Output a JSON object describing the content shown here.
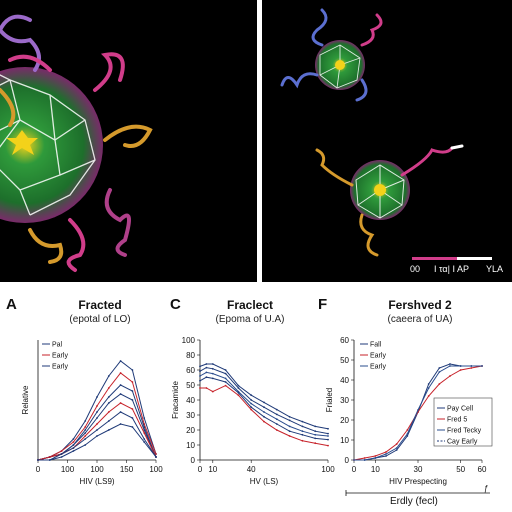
{
  "scale_bar": {
    "left_text": "00",
    "middle_text": "I τα| I AP",
    "right_text": "YLA"
  },
  "chart_data": [
    {
      "type": "line",
      "panel_letter": "A",
      "title": "Fracted",
      "subtitle": "(epotal of LO)",
      "xlabel": "HIV (LS9)",
      "ylabel": "Relative",
      "x_ticks": [
        "0",
        "100",
        "100",
        "150",
        "100"
      ],
      "y_ticks": [],
      "legend": [
        "Pal",
        "Early",
        "Early"
      ],
      "series_colors": [
        "#1f3a78",
        "#c7222a",
        "#1f3a78"
      ],
      "x": [
        0,
        10,
        20,
        30,
        40,
        50,
        60,
        70,
        80,
        90,
        100
      ],
      "series": [
        {
          "values": [
            0,
            1,
            3,
            7,
            13,
            21,
            28,
            33,
            30,
            14,
            2
          ]
        },
        {
          "values": [
            0,
            1,
            3,
            6,
            11,
            18,
            24,
            29,
            26,
            12,
            2
          ]
        },
        {
          "values": [
            0,
            1,
            2,
            5,
            10,
            16,
            21,
            25,
            23,
            11,
            1
          ]
        },
        {
          "values": [
            0,
            1,
            2,
            5,
            9,
            14,
            19,
            22,
            20,
            10,
            1
          ]
        },
        {
          "values": [
            0,
            1,
            2,
            4,
            8,
            12,
            16,
            19,
            17,
            9,
            1
          ]
        },
        {
          "values": [
            0,
            0,
            2,
            4,
            7,
            10,
            13,
            16,
            14,
            7,
            1
          ]
        },
        {
          "values": [
            0,
            0,
            1,
            3,
            5,
            8,
            10,
            12,
            11,
            6,
            1
          ]
        }
      ],
      "ylim": [
        0,
        40
      ]
    },
    {
      "type": "line",
      "panel_letter": "C",
      "title": "Fraclect",
      "subtitle": "(Epoma of U.A)",
      "xlabel": "HV (LS)",
      "ylabel": "Fracamide",
      "x_ticks": [
        "0",
        "10",
        "40",
        "100"
      ],
      "x_tick_values": [
        0,
        10,
        40,
        100
      ],
      "y_ticks": [
        "0",
        "10",
        "20",
        "30",
        "40",
        "50",
        "60",
        "80",
        "100"
      ],
      "x": [
        0,
        5,
        10,
        20,
        30,
        40,
        50,
        60,
        70,
        80,
        90,
        100
      ],
      "series": [
        {
          "values": [
            78,
            80,
            80,
            75,
            62,
            54,
            48,
            42,
            36,
            32,
            28,
            26
          ]
        },
        {
          "values": [
            74,
            77,
            76,
            72,
            60,
            50,
            44,
            38,
            33,
            28,
            24,
            22
          ]
        },
        {
          "values": [
            70,
            73,
            72,
            68,
            57,
            47,
            40,
            34,
            28,
            24,
            21,
            20
          ]
        },
        {
          "values": [
            66,
            69,
            68,
            65,
            56,
            44,
            36,
            30,
            24,
            21,
            18,
            17
          ]
        },
        {
          "values": [
            60,
            60,
            57,
            62,
            54,
            42,
            32,
            25,
            20,
            16,
            14,
            12
          ]
        }
      ],
      "series_colors": [
        "#1f3a78",
        "#1f3a78",
        "#2a4c8e",
        "#1f3a78",
        "#c7222a"
      ],
      "ylim": [
        0,
        100
      ],
      "xlim": [
        0,
        100
      ]
    },
    {
      "type": "line",
      "panel_letter": "F",
      "title": "Fershved 2",
      "subtitle": "(caeera of UA)",
      "xlabel": "HIV Prespecting",
      "ylabel": "Frialed",
      "x_ticks": [
        "0",
        "10",
        "30",
        "50",
        "60"
      ],
      "x_tick_values": [
        0,
        10,
        30,
        50,
        60
      ],
      "y_ticks": [
        "0",
        "10",
        "20",
        "30",
        "40",
        "50",
        "60"
      ],
      "legend_top": [
        "Fall",
        "Early",
        "Early"
      ],
      "legend_bottom": [
        "Pay Cell",
        "Fred 5",
        "Fred Tecky",
        "Cay Early"
      ],
      "x": [
        0,
        5,
        10,
        15,
        20,
        25,
        30,
        35,
        40,
        45,
        50,
        55,
        60
      ],
      "series": [
        {
          "values": [
            0,
            0,
            1,
            2,
            5,
            12,
            24,
            38,
            46,
            48,
            47,
            47,
            47
          ]
        },
        {
          "values": [
            0,
            1,
            2,
            4,
            8,
            15,
            24,
            32,
            38,
            42,
            45,
            46,
            47
          ]
        },
        {
          "values": [
            0,
            0,
            1,
            3,
            6,
            13,
            25,
            36,
            44,
            47,
            47,
            47,
            47
          ]
        }
      ],
      "series_colors": [
        "#1f3a78",
        "#c7222a",
        "#2a4c8e"
      ],
      "ylim": [
        0,
        60
      ],
      "xlim": [
        0,
        60
      ]
    }
  ],
  "bottom_axis": {
    "label": "Erdly (fecl)",
    "right_mark": "ƒ"
  }
}
